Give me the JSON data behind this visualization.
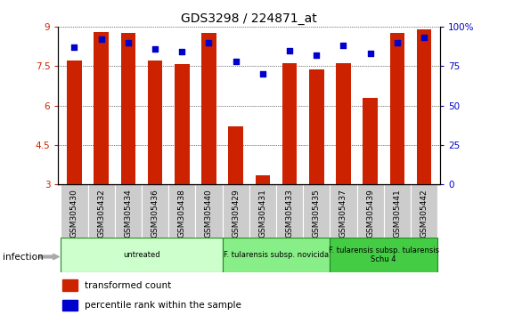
{
  "title": "GDS3298 / 224871_at",
  "categories": [
    "GSM305430",
    "GSM305432",
    "GSM305434",
    "GSM305436",
    "GSM305438",
    "GSM305440",
    "GSM305429",
    "GSM305431",
    "GSM305433",
    "GSM305435",
    "GSM305437",
    "GSM305439",
    "GSM305441",
    "GSM305442"
  ],
  "bar_values": [
    7.7,
    8.8,
    8.75,
    7.7,
    7.58,
    8.75,
    5.2,
    3.35,
    7.62,
    7.38,
    7.62,
    6.3,
    8.75,
    8.9
  ],
  "dot_values": [
    87,
    92,
    90,
    86,
    84,
    90,
    78,
    70,
    85,
    82,
    88,
    83,
    90,
    93
  ],
  "ylim_left": [
    3,
    9
  ],
  "ylim_right": [
    0,
    100
  ],
  "yticks_left": [
    3,
    4.5,
    6,
    7.5,
    9
  ],
  "yticks_right": [
    0,
    25,
    50,
    75,
    100
  ],
  "bar_color": "#CC2200",
  "dot_color": "#0000CC",
  "bar_width": 0.55,
  "groups": [
    {
      "label": "untreated",
      "start": 0,
      "end": 5,
      "color": "#CCFFCC"
    },
    {
      "label": "F. tularensis subsp. novicida",
      "start": 6,
      "end": 9,
      "color": "#88EE88"
    },
    {
      "label": "F. tularensis subsp. tularensis\nSchu 4",
      "start": 10,
      "end": 13,
      "color": "#44CC44"
    }
  ],
  "infection_label": "infection",
  "legend_items": [
    {
      "label": "transformed count",
      "color": "#CC2200"
    },
    {
      "label": "percentile rank within the sample",
      "color": "#0000CC"
    }
  ],
  "bg_color": "#FFFFFF",
  "grid_color": "#000000",
  "title_fontsize": 10,
  "tick_fontsize": 7.5,
  "label_fontsize": 6.5
}
